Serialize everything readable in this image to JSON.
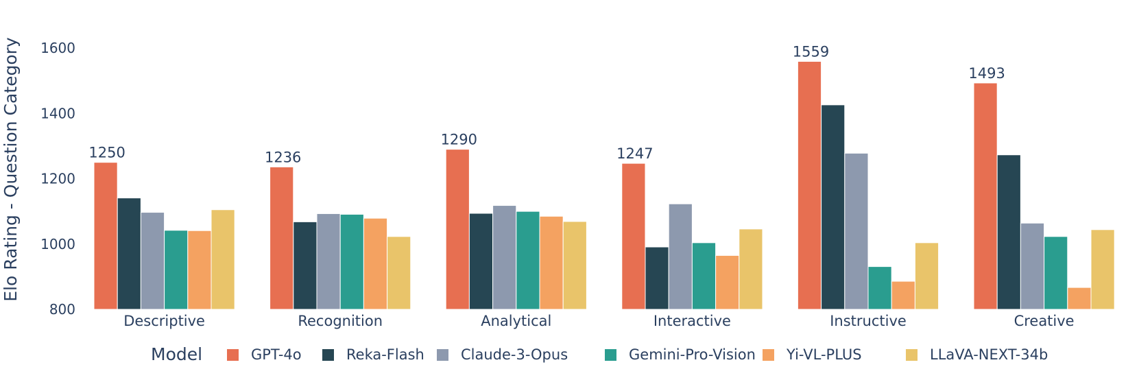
{
  "chart_data": {
    "type": "bar",
    "ylabel": "Elo Rating - Question Category",
    "ylim": [
      800,
      1650
    ],
    "yticks": [
      800,
      1000,
      1200,
      1400,
      1600
    ],
    "grid": false,
    "legend_title": "Model",
    "legend_position": "bottom",
    "categories": [
      "Descriptive",
      "Recognition",
      "Analytical",
      "Interactive",
      "Instructive",
      "Creative"
    ],
    "series": [
      {
        "name": "GPT-4o",
        "color": "#e76f51",
        "values": [
          1250,
          1236,
          1290,
          1247,
          1559,
          1493
        ]
      },
      {
        "name": "Reka-Flash",
        "color": "#264653",
        "values": [
          1141,
          1068,
          1094,
          991,
          1426,
          1273
        ]
      },
      {
        "name": "Claude-3-Opus",
        "color": "#8d99ae",
        "values": [
          1097,
          1093,
          1118,
          1123,
          1278,
          1064
        ]
      },
      {
        "name": "Gemini-Pro-Vision",
        "color": "#2a9d8f",
        "values": [
          1042,
          1091,
          1100,
          1004,
          931,
          1023
        ]
      },
      {
        "name": "Yi-VL-PLUS",
        "color": "#f4a261",
        "values": [
          1041,
          1079,
          1085,
          965,
          886,
          867
        ]
      },
      {
        "name": "LLaVA-NEXT-34b",
        "color": "#e9c46a",
        "values": [
          1105,
          1023,
          1069,
          1046,
          1004,
          1044
        ]
      }
    ],
    "data_labels": [
      {
        "series": "GPT-4o",
        "category": "Descriptive",
        "text": "1250"
      },
      {
        "series": "GPT-4o",
        "category": "Recognition",
        "text": "1236"
      },
      {
        "series": "GPT-4o",
        "category": "Analytical",
        "text": "1290"
      },
      {
        "series": "GPT-4o",
        "category": "Interactive",
        "text": "1247"
      },
      {
        "series": "GPT-4o",
        "category": "Instructive",
        "text": "1559"
      },
      {
        "series": "GPT-4o",
        "category": "Creative",
        "text": "1493"
      }
    ]
  }
}
